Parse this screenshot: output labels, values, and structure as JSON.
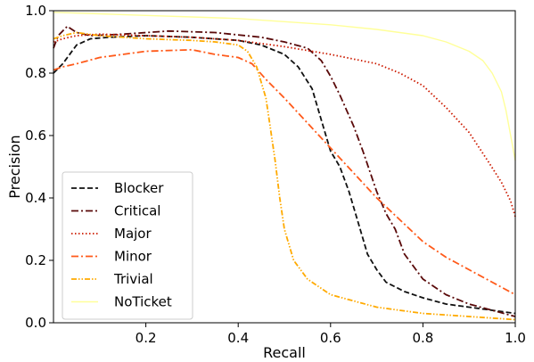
{
  "chart_data": {
    "type": "line",
    "title": "",
    "xlabel": "Recall",
    "ylabel": "Precision",
    "xlim": [
      0.0,
      1.0
    ],
    "ylim": [
      0.0,
      1.0
    ],
    "x_ticks": [
      "0.2",
      "0.4",
      "0.6",
      "0.8",
      "1.0"
    ],
    "y_ticks": [
      "0.0",
      "0.2",
      "0.4",
      "0.6",
      "0.8",
      "1.0"
    ],
    "grid": false,
    "legend": "lower-left",
    "series": [
      {
        "name": "Blocker",
        "color": "#111111",
        "dash": "dashed",
        "points": [
          [
            0.0,
            0.8
          ],
          [
            0.02,
            0.83
          ],
          [
            0.05,
            0.89
          ],
          [
            0.08,
            0.91
          ],
          [
            0.12,
            0.915
          ],
          [
            0.2,
            0.92
          ],
          [
            0.3,
            0.915
          ],
          [
            0.4,
            0.905
          ],
          [
            0.45,
            0.89
          ],
          [
            0.5,
            0.86
          ],
          [
            0.53,
            0.82
          ],
          [
            0.56,
            0.75
          ],
          [
            0.58,
            0.65
          ],
          [
            0.6,
            0.55
          ],
          [
            0.62,
            0.5
          ],
          [
            0.64,
            0.42
          ],
          [
            0.66,
            0.32
          ],
          [
            0.68,
            0.22
          ],
          [
            0.7,
            0.17
          ],
          [
            0.72,
            0.13
          ],
          [
            0.76,
            0.1
          ],
          [
            0.8,
            0.08
          ],
          [
            0.85,
            0.06
          ],
          [
            0.9,
            0.05
          ],
          [
            0.95,
            0.04
          ],
          [
            1.0,
            0.03
          ]
        ]
      },
      {
        "name": "Critical",
        "color": "#5a0a0a",
        "dash": "dashdot",
        "points": [
          [
            0.0,
            0.88
          ],
          [
            0.01,
            0.92
          ],
          [
            0.03,
            0.95
          ],
          [
            0.05,
            0.93
          ],
          [
            0.08,
            0.92
          ],
          [
            0.15,
            0.925
          ],
          [
            0.25,
            0.935
          ],
          [
            0.35,
            0.93
          ],
          [
            0.45,
            0.915
          ],
          [
            0.5,
            0.9
          ],
          [
            0.55,
            0.88
          ],
          [
            0.58,
            0.84
          ],
          [
            0.6,
            0.79
          ],
          [
            0.62,
            0.73
          ],
          [
            0.65,
            0.63
          ],
          [
            0.67,
            0.55
          ],
          [
            0.7,
            0.42
          ],
          [
            0.72,
            0.35
          ],
          [
            0.74,
            0.3
          ],
          [
            0.76,
            0.22
          ],
          [
            0.8,
            0.14
          ],
          [
            0.85,
            0.09
          ],
          [
            0.9,
            0.06
          ],
          [
            0.95,
            0.04
          ],
          [
            1.0,
            0.02
          ]
        ]
      },
      {
        "name": "Major",
        "color": "#cc1a00",
        "dash": "dotted",
        "points": [
          [
            0.0,
            0.9
          ],
          [
            0.02,
            0.91
          ],
          [
            0.05,
            0.92
          ],
          [
            0.1,
            0.925
          ],
          [
            0.2,
            0.92
          ],
          [
            0.3,
            0.915
          ],
          [
            0.4,
            0.905
          ],
          [
            0.5,
            0.885
          ],
          [
            0.6,
            0.86
          ],
          [
            0.7,
            0.83
          ],
          [
            0.75,
            0.8
          ],
          [
            0.8,
            0.76
          ],
          [
            0.85,
            0.69
          ],
          [
            0.9,
            0.61
          ],
          [
            0.94,
            0.52
          ],
          [
            0.97,
            0.45
          ],
          [
            0.99,
            0.39
          ],
          [
            1.0,
            0.34
          ]
        ]
      },
      {
        "name": "Minor",
        "color": "#ff5a1a",
        "dash": "dashdot",
        "points": [
          [
            0.0,
            0.81
          ],
          [
            0.02,
            0.82
          ],
          [
            0.05,
            0.83
          ],
          [
            0.1,
            0.85
          ],
          [
            0.2,
            0.87
          ],
          [
            0.3,
            0.875
          ],
          [
            0.35,
            0.86
          ],
          [
            0.4,
            0.85
          ],
          [
            0.43,
            0.83
          ],
          [
            0.46,
            0.78
          ],
          [
            0.5,
            0.72
          ],
          [
            0.55,
            0.64
          ],
          [
            0.6,
            0.56
          ],
          [
            0.65,
            0.48
          ],
          [
            0.7,
            0.4
          ],
          [
            0.75,
            0.33
          ],
          [
            0.8,
            0.26
          ],
          [
            0.85,
            0.21
          ],
          [
            0.9,
            0.17
          ],
          [
            0.95,
            0.13
          ],
          [
            1.0,
            0.09
          ]
        ]
      },
      {
        "name": "Trivial",
        "color": "#ffaa00",
        "dash": "dashdotdot",
        "points": [
          [
            0.0,
            0.91
          ],
          [
            0.02,
            0.92
          ],
          [
            0.05,
            0.93
          ],
          [
            0.1,
            0.92
          ],
          [
            0.2,
            0.91
          ],
          [
            0.3,
            0.905
          ],
          [
            0.35,
            0.9
          ],
          [
            0.4,
            0.89
          ],
          [
            0.42,
            0.87
          ],
          [
            0.44,
            0.82
          ],
          [
            0.46,
            0.72
          ],
          [
            0.47,
            0.62
          ],
          [
            0.48,
            0.52
          ],
          [
            0.49,
            0.4
          ],
          [
            0.5,
            0.3
          ],
          [
            0.52,
            0.2
          ],
          [
            0.55,
            0.14
          ],
          [
            0.6,
            0.09
          ],
          [
            0.65,
            0.07
          ],
          [
            0.7,
            0.05
          ],
          [
            0.8,
            0.03
          ],
          [
            0.9,
            0.02
          ],
          [
            1.0,
            0.01
          ]
        ]
      },
      {
        "name": "NoTicket",
        "color": "#ffff99",
        "dash": "solid",
        "points": [
          [
            0.0,
            0.995
          ],
          [
            0.1,
            0.99
          ],
          [
            0.2,
            0.985
          ],
          [
            0.3,
            0.98
          ],
          [
            0.4,
            0.975
          ],
          [
            0.5,
            0.965
          ],
          [
            0.6,
            0.955
          ],
          [
            0.7,
            0.94
          ],
          [
            0.8,
            0.92
          ],
          [
            0.85,
            0.9
          ],
          [
            0.9,
            0.87
          ],
          [
            0.93,
            0.84
          ],
          [
            0.95,
            0.8
          ],
          [
            0.97,
            0.74
          ],
          [
            0.98,
            0.68
          ],
          [
            0.99,
            0.6
          ],
          [
            1.0,
            0.52
          ]
        ]
      }
    ]
  }
}
